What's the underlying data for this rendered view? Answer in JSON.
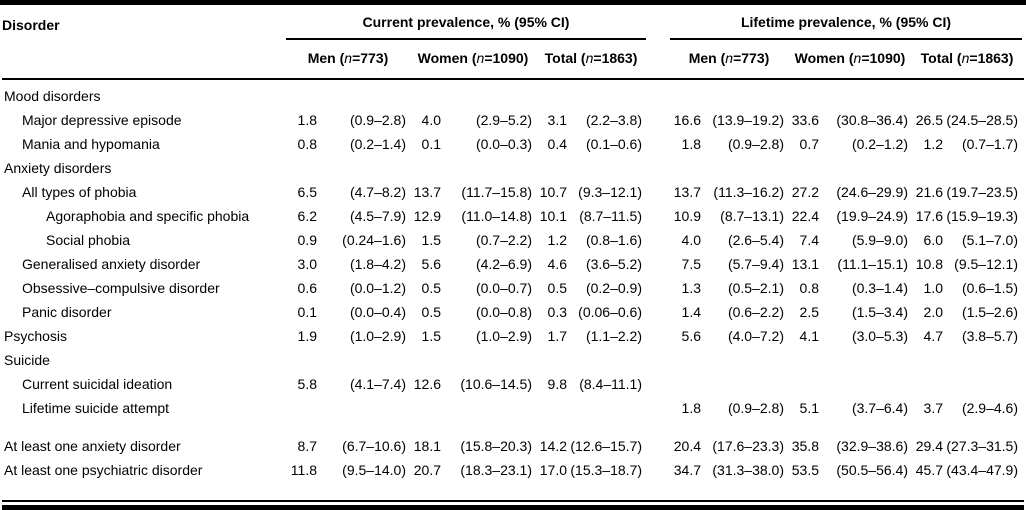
{
  "table": {
    "disorder_header": "Disorder",
    "groups": [
      {
        "label": "Current prevalence, % (95% CI)"
      },
      {
        "label": "Lifetime prevalence, % (95% CI)"
      }
    ],
    "subcols": [
      {
        "pre": "Men (",
        "n": "n",
        "post": "=773)"
      },
      {
        "pre": "Women (",
        "n": "n",
        "post": "=1090)"
      },
      {
        "pre": "Total (",
        "n": "n",
        "post": "=1863)"
      }
    ],
    "rows": [
      {
        "label": "Mood disorders",
        "indent": 0,
        "section": true,
        "cells": [
          null,
          null,
          null,
          null,
          null,
          null
        ]
      },
      {
        "label": "Major depressive episode",
        "indent": 1,
        "cells": [
          {
            "v": "1.8",
            "ci": "(0.9–2.8)"
          },
          {
            "v": "4.0",
            "ci": "(2.9–5.2)"
          },
          {
            "v": "3.1",
            "ci": "(2.2–3.8)"
          },
          {
            "v": "16.6",
            "ci": "(13.9–19.2)"
          },
          {
            "v": "33.6",
            "ci": "(30.8–36.4)"
          },
          {
            "v": "26.5",
            "ci": "(24.5–28.5)"
          }
        ]
      },
      {
        "label": "Mania and hypomania",
        "indent": 1,
        "cells": [
          {
            "v": "0.8",
            "ci": "(0.2–1.4)"
          },
          {
            "v": "0.1",
            "ci": "(0.0–0.3)"
          },
          {
            "v": "0.4",
            "ci": "(0.1–0.6)"
          },
          {
            "v": "1.8",
            "ci": "(0.9–2.8)"
          },
          {
            "v": "0.7",
            "ci": "(0.2–1.2)"
          },
          {
            "v": "1.2",
            "ci": "(0.7–1.7)"
          }
        ]
      },
      {
        "label": "Anxiety disorders",
        "indent": 0,
        "section": true,
        "cells": [
          null,
          null,
          null,
          null,
          null,
          null
        ]
      },
      {
        "label": "All types of phobia",
        "indent": 1,
        "cells": [
          {
            "v": "6.5",
            "ci": "(4.7–8.2)"
          },
          {
            "v": "13.7",
            "ci": "(11.7–15.8)"
          },
          {
            "v": "10.7",
            "ci": "(9.3–12.1)"
          },
          {
            "v": "13.7",
            "ci": "(11.3–16.2)"
          },
          {
            "v": "27.2",
            "ci": "(24.6–29.9)"
          },
          {
            "v": "21.6",
            "ci": "(19.7–23.5)"
          }
        ]
      },
      {
        "label": "Agoraphobia and specific phobia",
        "indent": 2,
        "cells": [
          {
            "v": "6.2",
            "ci": "(4.5–7.9)"
          },
          {
            "v": "12.9",
            "ci": "(11.0–14.8)"
          },
          {
            "v": "10.1",
            "ci": "(8.7–11.5)"
          },
          {
            "v": "10.9",
            "ci": "(8.7–13.1)"
          },
          {
            "v": "22.4",
            "ci": "(19.9–24.9)"
          },
          {
            "v": "17.6",
            "ci": "(15.9–19.3)"
          }
        ]
      },
      {
        "label": "Social phobia",
        "indent": 2,
        "cells": [
          {
            "v": "0.9",
            "ci": "(0.24–1.6)"
          },
          {
            "v": "1.5",
            "ci": "(0.7–2.2)"
          },
          {
            "v": "1.2",
            "ci": "(0.8–1.6)"
          },
          {
            "v": "4.0",
            "ci": "(2.6–5.4)"
          },
          {
            "v": "7.4",
            "ci": "(5.9–9.0)"
          },
          {
            "v": "6.0",
            "ci": "(5.1–7.0)"
          }
        ]
      },
      {
        "label": "Generalised anxiety disorder",
        "indent": 1,
        "cells": [
          {
            "v": "3.0",
            "ci": "(1.8–4.2)"
          },
          {
            "v": "5.6",
            "ci": "(4.2–6.9)"
          },
          {
            "v": "4.6",
            "ci": "(3.6–5.2)"
          },
          {
            "v": "7.5",
            "ci": "(5.7–9.4)"
          },
          {
            "v": "13.1",
            "ci": "(11.1–15.1)"
          },
          {
            "v": "10.8",
            "ci": "(9.5–12.1)"
          }
        ]
      },
      {
        "label": "Obsessive–compulsive disorder",
        "indent": 1,
        "cells": [
          {
            "v": "0.6",
            "ci": "(0.0–1.2)"
          },
          {
            "v": "0.5",
            "ci": "(0.0–0.7)"
          },
          {
            "v": "0.5",
            "ci": "(0.2–0.9)"
          },
          {
            "v": "1.3",
            "ci": "(0.5–2.1)"
          },
          {
            "v": "0.8",
            "ci": "(0.3–1.4)"
          },
          {
            "v": "1.0",
            "ci": "(0.6–1.5)"
          }
        ]
      },
      {
        "label": "Panic disorder",
        "indent": 1,
        "cells": [
          {
            "v": "0.1",
            "ci": "(0.0–0.4)"
          },
          {
            "v": "0.5",
            "ci": "(0.0–0.8)"
          },
          {
            "v": "0.3",
            "ci": "(0.06–0.6)"
          },
          {
            "v": "1.4",
            "ci": "(0.6–2.2)"
          },
          {
            "v": "2.5",
            "ci": "(1.5–3.4)"
          },
          {
            "v": "2.0",
            "ci": "(1.5–2.6)"
          }
        ]
      },
      {
        "label": "Psychosis",
        "indent": 0,
        "cells": [
          {
            "v": "1.9",
            "ci": "(1.0–2.9)"
          },
          {
            "v": "1.5",
            "ci": "(1.0–2.9)"
          },
          {
            "v": "1.7",
            "ci": "(1.1–2.2)"
          },
          {
            "v": "5.6",
            "ci": "(4.0–7.2)"
          },
          {
            "v": "4.1",
            "ci": "(3.0–5.3)"
          },
          {
            "v": "4.7",
            "ci": "(3.8–5.7)"
          }
        ]
      },
      {
        "label": "Suicide",
        "indent": 0,
        "section": true,
        "cells": [
          null,
          null,
          null,
          null,
          null,
          null
        ]
      },
      {
        "label": "Current suicidal ideation",
        "indent": 1,
        "cells": [
          {
            "v": "5.8",
            "ci": "(4.1–7.4)"
          },
          {
            "v": "12.6",
            "ci": "(10.6–14.5)"
          },
          {
            "v": "9.8",
            "ci": "(8.4–11.1)"
          },
          null,
          null,
          null
        ]
      },
      {
        "label": "Lifetime suicide attempt",
        "indent": 1,
        "cells": [
          null,
          null,
          null,
          {
            "v": "1.8",
            "ci": "(0.9–2.8)"
          },
          {
            "v": "5.1",
            "ci": "(3.7–6.4)"
          },
          {
            "v": "3.7",
            "ci": "(2.9–4.6)"
          }
        ]
      },
      {
        "label": "At least one anxiety disorder",
        "indent": 0,
        "gap_before": true,
        "cells": [
          {
            "v": "8.7",
            "ci": "(6.7–10.6)"
          },
          {
            "v": "18.1",
            "ci": "(15.8–20.3)"
          },
          {
            "v": "14.2",
            "ci": "(12.6–15.7)"
          },
          {
            "v": "20.4",
            "ci": "(17.6–23.3)"
          },
          {
            "v": "35.8",
            "ci": "(32.9–38.6)"
          },
          {
            "v": "29.4",
            "ci": "(27.3–31.5)"
          }
        ]
      },
      {
        "label": "At least one psychiatric disorder",
        "indent": 0,
        "cells": [
          {
            "v": "11.8",
            "ci": "(9.5–14.0)"
          },
          {
            "v": "20.7",
            "ci": "(18.3–23.1)"
          },
          {
            "v": "17.0",
            "ci": "(15.3–18.7)"
          },
          {
            "v": "34.7",
            "ci": "(31.3–38.0)"
          },
          {
            "v": "53.5",
            "ci": "(50.5–56.4)"
          },
          {
            "v": "45.7",
            "ci": "(43.4–47.9)"
          }
        ]
      }
    ]
  }
}
